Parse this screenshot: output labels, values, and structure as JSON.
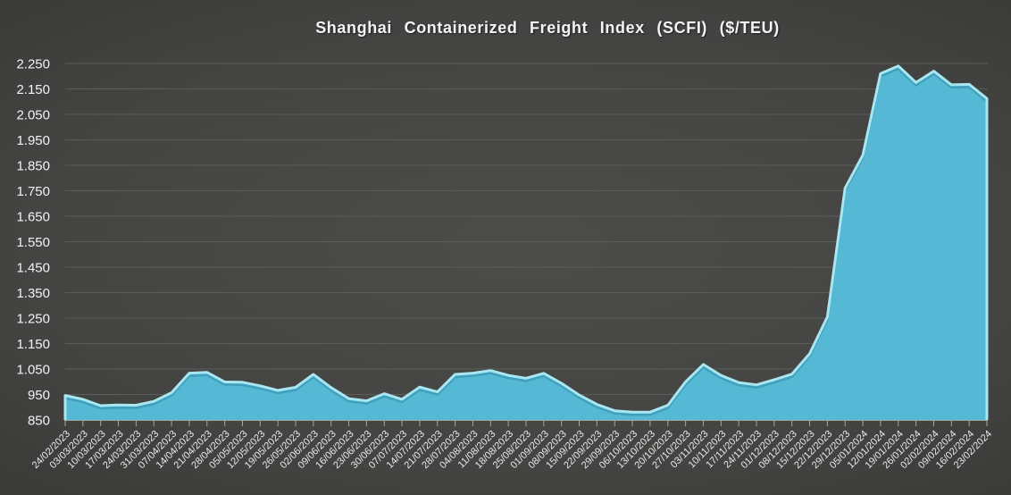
{
  "chart_data": {
    "type": "area",
    "title": "Shanghai Containerized Freight Index (SCFI) ($/TEU)",
    "xlabel": "",
    "ylabel": "",
    "legend": "none",
    "grid": true,
    "ylim": [
      850,
      2250
    ],
    "ytick_values": [
      850,
      950,
      1050,
      1150,
      1250,
      1350,
      1450,
      1550,
      1650,
      1750,
      1850,
      1950,
      2050,
      2150,
      2250
    ],
    "ytick_labels": [
      "850",
      "950",
      "1.050",
      "1.150",
      "1.250",
      "1.350",
      "1.450",
      "1.550",
      "1.650",
      "1.750",
      "1.850",
      "1.950",
      "2.050",
      "2.150",
      "2.250"
    ],
    "x": [
      "24/02/2023",
      "03/03/2023",
      "10/03/2023",
      "17/03/2023",
      "24/03/2023",
      "31/03/2023",
      "07/04/2023",
      "14/04/2023",
      "21/04/2023",
      "28/04/2023",
      "05/05/2023",
      "12/05/2023",
      "19/05/2023",
      "26/05/2023",
      "02/06/2023",
      "09/06/2023",
      "16/06/2023",
      "23/06/2023",
      "30/06/2023",
      "07/07/2023",
      "14/07/2023",
      "21/07/2023",
      "28/07/2023",
      "04/08/2023",
      "11/08/2023",
      "18/08/2023",
      "25/08/2023",
      "01/09/2023",
      "08/09/2023",
      "15/09/2023",
      "22/09/2023",
      "29/09/2023",
      "06/10/2023",
      "13/10/2023",
      "20/10/2023",
      "27/10/2023",
      "03/11/2023",
      "10/11/2023",
      "17/11/2023",
      "24/11/2023",
      "01/12/2023",
      "08/12/2023",
      "15/12/2023",
      "22/12/2023",
      "29/12/2023",
      "05/01/2024",
      "12/01/2024",
      "19/01/2024",
      "26/01/2024",
      "02/02/2024",
      "09/02/2024",
      "16/02/2024",
      "23/02/2024"
    ],
    "values": [
      946,
      931,
      906,
      909,
      908,
      923,
      957,
      1034,
      1037,
      999,
      998,
      984,
      966,
      978,
      1029,
      977,
      934,
      925,
      953,
      931,
      979,
      960,
      1029,
      1034,
      1044,
      1025,
      1014,
      1033,
      994,
      948,
      911,
      886,
      881,
      881,
      908,
      1000,
      1068,
      1025,
      997,
      988,
      1008,
      1030,
      1110,
      1255,
      1760,
      1890,
      2210,
      2240,
      2175,
      2220,
      2166,
      2168,
      2112
    ],
    "colors": {
      "area_fill": "#55b8d5",
      "area_edge": "#a8e6f2",
      "area_edge_shadow": "#2f8aa6",
      "gridline": "#5c5c59",
      "axis": "#a6a6a3",
      "title_text": "#f4f4f4",
      "tick_text": "#e9e9e9"
    }
  }
}
